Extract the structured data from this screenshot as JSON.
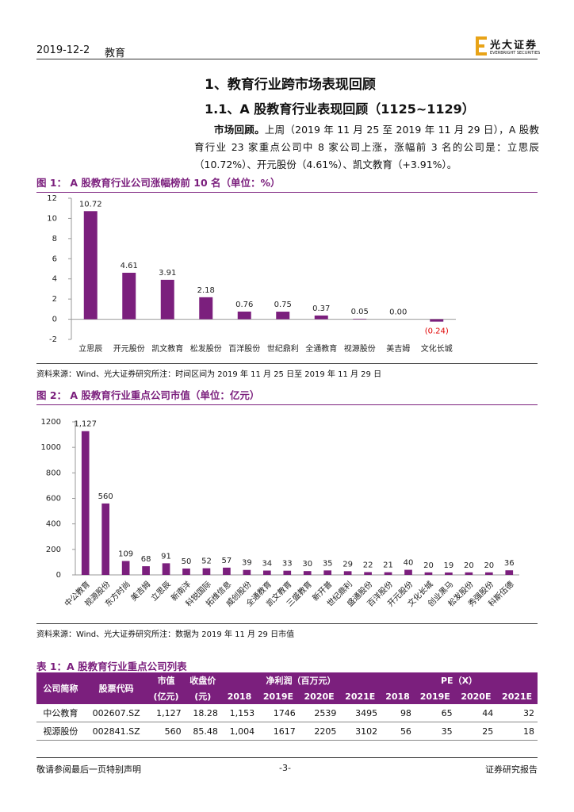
{
  "header": {
    "date": "2019-12-2",
    "section": "教育",
    "logo": "光大证券",
    "logo_sub": "EVERBRIGHT SECURITIES"
  },
  "heading1": "1、教育行业跨市场表现回顾",
  "heading2": "1.1、A 股教育行业表现回顾（1125~1129）",
  "paragraph": {
    "lead": "市场回顾。",
    "text": "上周（2019 年 11 月 25 至 2019 年 11 月 29 日），A 股教育行业 23 家重点公司中 8 家公司上涨，涨幅前 3 名的公司是：立思辰（10.72%）、开元股份（4.61%）、凯文教育（+3.91%）。"
  },
  "chart_data": [
    {
      "type": "bar",
      "title": "图 1：  A 股教育行业公司涨幅榜前 10 名（单位：%）",
      "categories": [
        "立思辰",
        "开元股份",
        "凯文教育",
        "松发股份",
        "百洋股份",
        "世纪鼎利",
        "全通教育",
        "视源股份",
        "美吉姆",
        "文化长城"
      ],
      "values": [
        10.72,
        4.61,
        3.91,
        2.18,
        0.76,
        0.75,
        0.37,
        0.05,
        0.0,
        -0.24
      ],
      "value_labels": [
        "10.72",
        "4.61",
        "3.91",
        "2.18",
        "0.76",
        "0.75",
        "0.37",
        "0.05",
        "0.00",
        "(0.24)"
      ],
      "color": "#7b1f7d",
      "negative_label_color": "#e00000",
      "ylim": [
        -2,
        12
      ],
      "yticks": [
        -2,
        0,
        2,
        4,
        6,
        8,
        10,
        12
      ],
      "source": "资料来源：Wind、光大证券研究所注：时间区间为 2019 年 11 月 25 日至 2019 年 11 月 29 日"
    },
    {
      "type": "bar",
      "title": "图 2：  A 股教育行业重点公司市值（单位：亿元）",
      "categories": [
        "中公教育",
        "视源股份",
        "东方时尚",
        "美吉姆",
        "立思辰",
        "新南洋",
        "科锐国际",
        "拓维信息",
        "威创股份",
        "全通教育",
        "凯文教育",
        "三盛教育",
        "新开普",
        "世纪鼎利",
        "盛通股份",
        "百洋股份",
        "开元股份",
        "文化长城",
        "创业黑马",
        "松发股份",
        "秀强股份",
        "科斯伍德"
      ],
      "values": [
        1127,
        560,
        109,
        68,
        91,
        50,
        52,
        57,
        39,
        34,
        33,
        30,
        35,
        29,
        22,
        21,
        40,
        20,
        19,
        20,
        20,
        36
      ],
      "value_labels": [
        "1,127",
        "560",
        "109",
        "68",
        "91",
        "50",
        "52",
        "57",
        "39",
        "34",
        "33",
        "30",
        "35",
        "29",
        "22",
        "21",
        "40",
        "20",
        "19",
        "20",
        "20",
        "36"
      ],
      "color": "#7b1f7d",
      "ylim": [
        0,
        1200
      ],
      "yticks": [
        0,
        200,
        400,
        600,
        800,
        1000,
        1200
      ],
      "source": "资料来源：Wind、光大证券研究所注：数据为 2019 年 11 月 29 日市值"
    }
  ],
  "table": {
    "title": "表 1：A 股教育行业重点公司列表",
    "header_rows": [
      [
        "公司简称",
        "股票代码",
        "市值",
        "收盘价",
        "净利润（百万元）",
        "PE（X）"
      ],
      [
        "(亿元)",
        "(元)",
        "2018",
        "2019E",
        "2020E",
        "2021E",
        "2018",
        "2019E",
        "2020E",
        "2021E"
      ]
    ],
    "rows": [
      [
        "中公教育",
        "002607.SZ",
        "1,127",
        "18.28",
        "1,153",
        "1746",
        "2539",
        "3495",
        "98",
        "65",
        "44",
        "32"
      ],
      [
        "视源股份",
        "002841.SZ",
        "560",
        "85.48",
        "1,004",
        "1617",
        "2205",
        "3102",
        "56",
        "35",
        "25",
        "18"
      ]
    ]
  },
  "footer": {
    "left": "敬请参阅最后一页特别声明",
    "center": "-3-",
    "right": "证券研究报告"
  }
}
